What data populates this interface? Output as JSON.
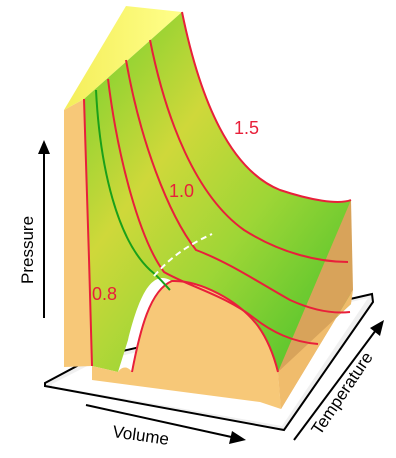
{
  "axes": {
    "x_label": "Volume",
    "y_label": "Pressure",
    "z_label": "Temperature"
  },
  "isotherm_labels": [
    "1.5",
    "1.0",
    "0.8"
  ],
  "colors": {
    "surface_green": "#4fcf2a",
    "surface_yellow": "#e8dc3a",
    "side_face": "#f7c878",
    "back_top": "#ffff7a",
    "isotherm_line": "#e8203a",
    "critical_line": "#1aa01a",
    "coexistence_dashes": "#ffffff",
    "label_text": "#e8203a"
  }
}
